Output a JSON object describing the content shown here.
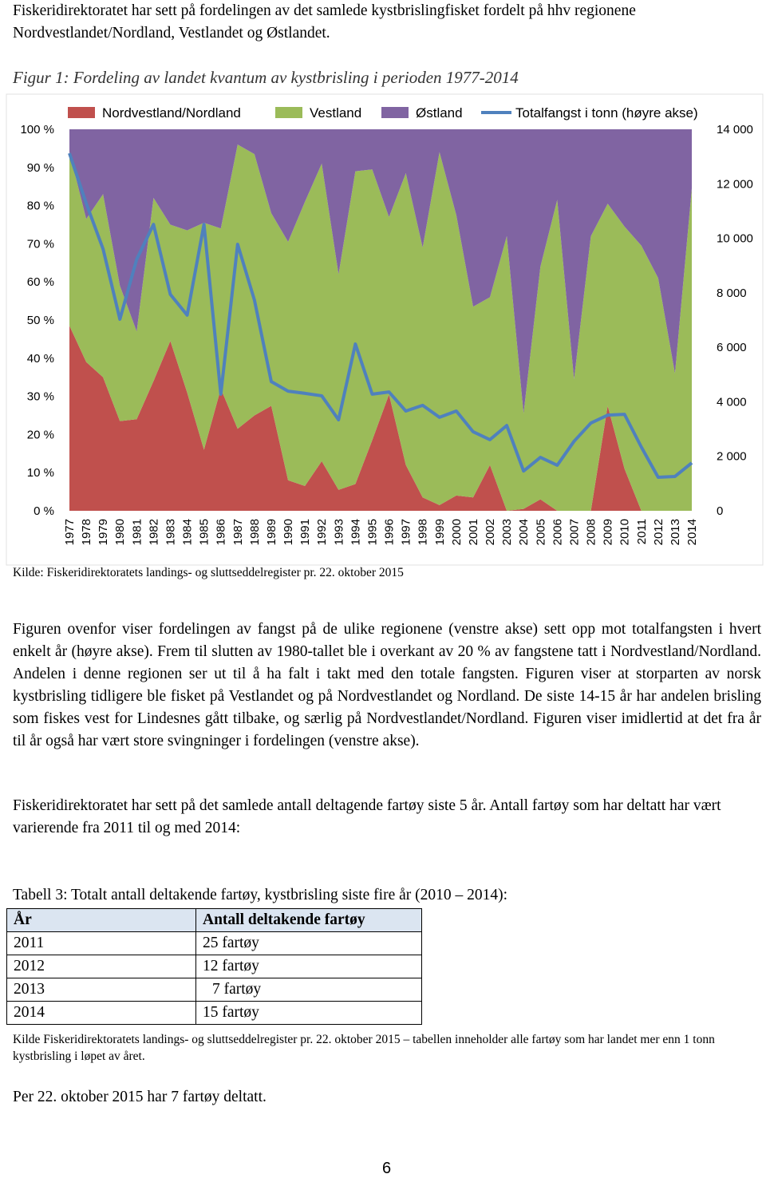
{
  "intro": "Fiskeridirektoratet har sett på fordelingen av det samlede kystbrislingfisket fordelt på hhv regionene Nordvestlandet/Nordland, Vestlandet og Østlandet.",
  "chart_data": {
    "type": "stacked_area",
    "title": "Figur 1: Fordeling av landet kvantum av kystbrisling i perioden 1977-2014",
    "categories": [
      "1977",
      "1978",
      "1979",
      "1980",
      "1981",
      "1982",
      "1983",
      "1984",
      "1985",
      "1986",
      "1987",
      "1988",
      "1989",
      "1990",
      "1991",
      "1992",
      "1993",
      "1994",
      "1995",
      "1996",
      "1997",
      "1998",
      "1999",
      "2000",
      "2001",
      "2002",
      "2003",
      "2004",
      "2005",
      "2006",
      "2007",
      "2008",
      "2009",
      "2010",
      "2011",
      "2012",
      "2013",
      "2014"
    ],
    "series": [
      {
        "name": "Nordvestland/Nordland",
        "color": "#c0504d",
        "values": [
          48.5,
          39,
          35,
          23.5,
          24,
          34,
          44.5,
          31,
          16,
          32,
          21.5,
          25,
          27.5,
          8,
          6.5,
          13,
          5.5,
          7,
          18.5,
          30.5,
          12,
          3.5,
          1.5,
          4,
          3.5,
          12,
          0,
          0.5,
          3,
          0,
          0,
          0,
          27.5,
          11,
          0,
          0,
          0,
          0
        ]
      },
      {
        "name": "Vestland",
        "color": "#9bbb59",
        "values": [
          45.5,
          37.5,
          48,
          35.5,
          23,
          48,
          30.5,
          42.5,
          59.5,
          42,
          74.5,
          68.5,
          50.5,
          62.5,
          74.5,
          78,
          56.5,
          82,
          71,
          46.5,
          76.5,
          65.5,
          92.5,
          73.5,
          50,
          44,
          72,
          25,
          61,
          81.5,
          34.5,
          72,
          53,
          63.5,
          69.5,
          61,
          36,
          84.5
        ]
      },
      {
        "name": "Østland",
        "color": "#8064a2",
        "values": [
          6,
          23.5,
          17,
          41,
          53,
          18,
          25,
          26.5,
          24.5,
          26,
          4,
          6.5,
          22,
          29.5,
          19,
          9,
          38,
          11,
          10.5,
          23,
          11.5,
          31,
          6,
          22.5,
          46.5,
          44,
          28,
          74.5,
          36,
          18.5,
          65.5,
          28,
          19.5,
          25.5,
          30.5,
          39,
          64,
          15.5
        ]
      },
      {
        "name": "Totalfangst i tonn (høyre akse)",
        "color": "#4f81bd",
        "axis": "y2",
        "type": "line",
        "values": [
          13120,
          11280,
          9610,
          7030,
          9230,
          10510,
          7940,
          7180,
          10510,
          4280,
          9780,
          7730,
          4740,
          4390,
          4310,
          4220,
          3340,
          6120,
          4280,
          4360,
          3660,
          3870,
          3430,
          3660,
          2900,
          2610,
          3130,
          1460,
          1960,
          1670,
          2550,
          3220,
          3510,
          3540,
          2340,
          1230,
          1260,
          1760
        ]
      }
    ],
    "ylim": [
      0,
      100
    ],
    "yticks": [
      {
        "value": 0,
        "label": "0 %"
      },
      {
        "value": 10,
        "label": "10 %"
      },
      {
        "value": 20,
        "label": "20 %"
      },
      {
        "value": 30,
        "label": "30 %"
      },
      {
        "value": 40,
        "label": "40 %"
      },
      {
        "value": 50,
        "label": "50 %"
      },
      {
        "value": 60,
        "label": "60 %"
      },
      {
        "value": 70,
        "label": "70 %"
      },
      {
        "value": 80,
        "label": "80 %"
      },
      {
        "value": 90,
        "label": "90 %"
      },
      {
        "value": 100,
        "label": "100 %"
      }
    ],
    "y2lim": [
      0,
      14000
    ],
    "y2ticks": [
      0,
      {
        "value": 2000,
        "label": "2 000"
      },
      {
        "value": 4000,
        "label": "4 000"
      },
      {
        "value": 6000,
        "label": "6 000"
      },
      {
        "value": 8000,
        "label": "8 000"
      },
      {
        "value": 10000,
        "label": "10 000"
      },
      {
        "value": 12000,
        "label": "12 000"
      },
      {
        "value": 14000,
        "label": "14 000"
      }
    ],
    "legend": "top",
    "source": "Kilde: Fiskeridirektoratets landings- og sluttseddelregister pr. 22. oktober 2015"
  },
  "paragraphs": [
    "Figuren ovenfor viser fordelingen av fangst på de ulike regionene (venstre akse) sett opp mot totalfangsten i hvert enkelt år (høyre akse). Frem til slutten av 1980-tallet ble i overkant av 20 % av fangstene tatt i Nordvestland/Nordland. Andelen i denne regionen ser ut til å ha falt i takt med den totale fangsten. Figuren viser at storparten av norsk kystbrisling tidligere ble fisket på Vestlandet og på Nordvestlandet og Nordland. De siste 14-15 år har andelen brisling som fiskes vest for Lindesnes gått tilbake, og særlig på Nordvestlandet/Nordland. Figuren viser imidlertid at det fra år til år også har vært store svingninger i fordelingen (venstre akse).",
    "Fiskeridirektoratet har sett på det samlede antall deltagende fartøy siste 5 år. Antall fartøy som har deltatt har vært varierende fra 2011 til og med 2014:"
  ],
  "table": {
    "caption": "Tabell 3: Totalt antall deltakende fartøy, kystbrisling siste fire år (2010 – 2014):",
    "header": [
      "År",
      "Antall deltakende fartøy"
    ],
    "rows": [
      [
        "2011",
        "25 fartøy"
      ],
      [
        "2012",
        "12 fartøy"
      ],
      [
        "2013",
        "7 fartøy"
      ],
      [
        "2014",
        "15 fartøy"
      ]
    ],
    "source": "Kilde Fiskeridirektoratets landings- og sluttseddelregister pr. 22. oktober 2015 – tabellen inneholder alle fartøy som har landet mer enn 1 tonn kystbrisling i løpet av året."
  },
  "closing": "Per 22. oktober 2015 har 7 fartøy deltatt.",
  "page_number": "6"
}
